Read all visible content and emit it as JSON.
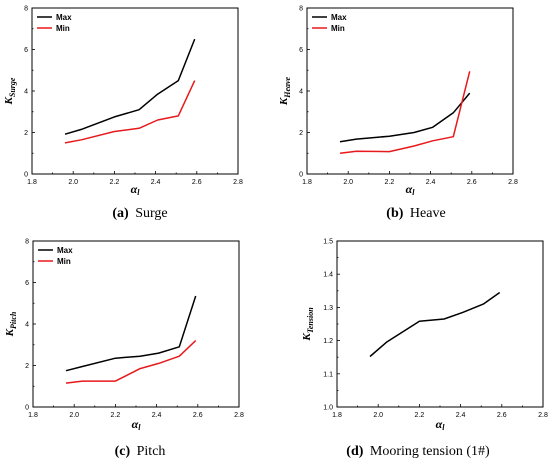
{
  "chart_data": [
    {
      "id": "surge",
      "type": "line",
      "caption_label": "(a)",
      "caption_text": "Surge",
      "ylabel": {
        "base": "K",
        "sub": "Surge"
      },
      "xlabel": {
        "base": "α",
        "sub": "l"
      },
      "xlim": [
        1.8,
        2.8
      ],
      "ylim": [
        0,
        8
      ],
      "xticks": [
        "1.8",
        "2.0",
        "2.2",
        "2.4",
        "2.6",
        "2.8"
      ],
      "yticks": [
        "0",
        "2",
        "4",
        "6",
        "8"
      ],
      "legend": {
        "position": "top-left"
      },
      "series": [
        {
          "name": "Max",
          "color": "#000000",
          "x": [
            1.96,
            2.04,
            2.2,
            2.32,
            2.41,
            2.51,
            2.59
          ],
          "y": [
            1.92,
            2.15,
            2.75,
            3.1,
            3.85,
            4.5,
            6.5
          ]
        },
        {
          "name": "Min",
          "color": "#e8191c",
          "x": [
            1.96,
            2.04,
            2.2,
            2.32,
            2.41,
            2.51,
            2.59
          ],
          "y": [
            1.5,
            1.65,
            2.05,
            2.2,
            2.6,
            2.8,
            4.5
          ]
        }
      ]
    },
    {
      "id": "heave",
      "type": "line",
      "caption_label": "(b)",
      "caption_text": "Heave",
      "ylabel": {
        "base": "K",
        "sub": "Heave"
      },
      "xlabel": {
        "base": "α",
        "sub": "l"
      },
      "xlim": [
        1.8,
        2.8
      ],
      "ylim": [
        0,
        8
      ],
      "xticks": [
        "1.8",
        "2.0",
        "2.2",
        "2.4",
        "2.6",
        "2.8"
      ],
      "yticks": [
        "0",
        "2",
        "4",
        "6",
        "8"
      ],
      "legend": {
        "position": "top-left"
      },
      "series": [
        {
          "name": "Max",
          "color": "#000000",
          "x": [
            1.96,
            2.04,
            2.2,
            2.32,
            2.41,
            2.51,
            2.59
          ],
          "y": [
            1.55,
            1.68,
            1.82,
            2.0,
            2.25,
            2.95,
            3.9
          ]
        },
        {
          "name": "Min",
          "color": "#e8191c",
          "x": [
            1.96,
            2.04,
            2.2,
            2.32,
            2.41,
            2.51,
            2.59
          ],
          "y": [
            1.0,
            1.1,
            1.08,
            1.35,
            1.6,
            1.8,
            4.95
          ]
        }
      ]
    },
    {
      "id": "pitch",
      "type": "line",
      "caption_label": "(c)",
      "caption_text": "Pitch",
      "ylabel": {
        "base": "K",
        "sub": "Pitch"
      },
      "xlabel": {
        "base": "α",
        "sub": "l"
      },
      "xlim": [
        1.8,
        2.8
      ],
      "ylim": [
        0,
        8
      ],
      "xticks": [
        "1.8",
        "2.0",
        "2.2",
        "2.4",
        "2.6",
        "2.8"
      ],
      "yticks": [
        "0",
        "2",
        "4",
        "6",
        "8"
      ],
      "legend": {
        "position": "top-left"
      },
      "series": [
        {
          "name": "Max",
          "color": "#000000",
          "x": [
            1.96,
            2.04,
            2.2,
            2.32,
            2.41,
            2.51,
            2.59
          ],
          "y": [
            1.75,
            1.95,
            2.35,
            2.45,
            2.6,
            2.9,
            5.35
          ]
        },
        {
          "name": "Min",
          "color": "#e8191c",
          "x": [
            1.96,
            2.04,
            2.2,
            2.32,
            2.41,
            2.51,
            2.59
          ],
          "y": [
            1.15,
            1.25,
            1.25,
            1.85,
            2.1,
            2.45,
            3.2
          ]
        }
      ]
    },
    {
      "id": "mooring",
      "type": "line",
      "caption_label": "(d)",
      "caption_text": "Mooring tension (1#)",
      "ylabel": {
        "base": "K",
        "sub": "Tension"
      },
      "xlabel": {
        "base": "α",
        "sub": "l"
      },
      "xlim": [
        1.8,
        2.8
      ],
      "ylim": [
        1.0,
        1.5
      ],
      "xticks": [
        "1.8",
        "2.0",
        "2.2",
        "2.4",
        "2.6",
        "2.8"
      ],
      "yticks": [
        "1.0",
        "1.1",
        "1.2",
        "1.3",
        "1.4",
        "1.5"
      ],
      "legend": null,
      "series": [
        {
          "color": "#000000",
          "x": [
            1.96,
            2.04,
            2.2,
            2.32,
            2.41,
            2.51,
            2.59
          ],
          "y": [
            1.152,
            1.195,
            1.258,
            1.265,
            1.285,
            1.31,
            1.345
          ]
        }
      ]
    }
  ]
}
